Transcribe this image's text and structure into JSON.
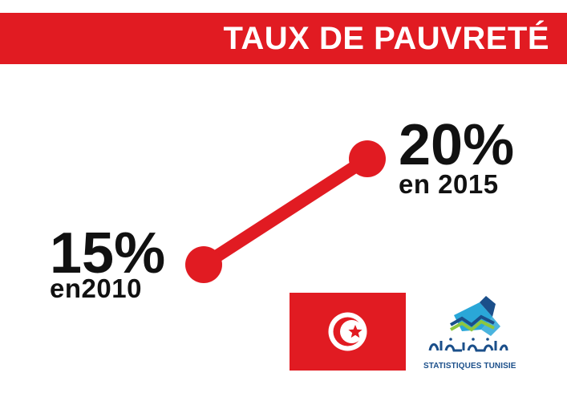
{
  "title": "TAUX DE PAUVRETÉ",
  "colors": {
    "accent": "#e11b22",
    "text": "#111111",
    "title_text": "#ffffff",
    "logo_blue": "#1b4f8a",
    "logo_cyan": "#2aa7d8",
    "logo_green": "#8dc63f"
  },
  "chart_data": {
    "type": "line",
    "x": [
      2010,
      2015
    ],
    "series": [
      {
        "values": [
          15,
          20
        ]
      }
    ],
    "data_labels": [
      {
        "value": "15%",
        "caption": "en2010"
      },
      {
        "value": "20%",
        "caption": "en 2015"
      }
    ],
    "ylim": [
      15,
      20
    ]
  },
  "flag": {
    "icon": "tunisia-flag-icon"
  },
  "logo": {
    "icon": "statistiques-tunisie-logo",
    "caption": "STATISTIQUES TUNISIE"
  }
}
